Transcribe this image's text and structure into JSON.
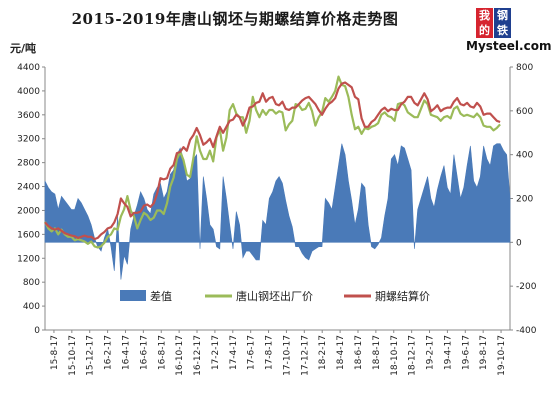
{
  "header": {
    "title": "2015-2019年唐山钢坯与期螺结算价格走势图",
    "unit": "元/吨"
  },
  "logo": {
    "char1": "我",
    "char2": "的",
    "char3": "钢",
    "char4": "铁",
    "text": "Mysteel.com"
  },
  "colors": {
    "diff": "#4a7ab8",
    "billet": "#9bbb59",
    "futures": "#c0504d",
    "axis": "#888888"
  },
  "chart_data": {
    "type": "line",
    "left_axis": {
      "min": 0,
      "max": 4400,
      "ticks": [
        0,
        400,
        800,
        1200,
        1600,
        2000,
        2400,
        2800,
        3200,
        3600,
        4000,
        4400
      ]
    },
    "right_axis": {
      "min": -400,
      "max": 800,
      "ticks": [
        -400,
        -200,
        0,
        200,
        400,
        600,
        800
      ]
    },
    "x_tick_labels": [
      "15-8-17",
      "15-10-17",
      "15-12-17",
      "16-2-17",
      "16-4-17",
      "16-6-17",
      "16-8-17",
      "16-10-17",
      "16-12-17",
      "17-2-17",
      "17-4-17",
      "17-6-17",
      "17-8-17",
      "17-10-17",
      "17-12-17",
      "18-2-17",
      "18-4-17",
      "18-6-17",
      "18-8-17",
      "18-10-17",
      "18-12-17",
      "19-2-17",
      "19-4-17",
      "19-6-17",
      "19-8-17",
      "19-10-17"
    ],
    "series": [
      {
        "name": "差值",
        "type": "area",
        "axis": "right",
        "values": [
          280,
          250,
          230,
          220,
          150,
          210,
          190,
          170,
          150,
          150,
          200,
          180,
          150,
          120,
          80,
          20,
          -20,
          -40,
          20,
          60,
          -20,
          -130,
          120,
          -170,
          -60,
          -100,
          60,
          120,
          170,
          230,
          200,
          150,
          130,
          220,
          250,
          270,
          200,
          230,
          310,
          330,
          400,
          430,
          380,
          280,
          290,
          380,
          400,
          -30,
          300,
          200,
          80,
          60,
          -20,
          -30,
          300,
          200,
          80,
          -30,
          140,
          80,
          -70,
          -40,
          -40,
          -60,
          -80,
          -80,
          100,
          80,
          200,
          230,
          280,
          300,
          270,
          190,
          120,
          70,
          -20,
          -20,
          -50,
          -70,
          -80,
          -40,
          -30,
          -20,
          -20,
          200,
          180,
          150,
          250,
          350,
          450,
          400,
          280,
          190,
          80,
          150,
          270,
          250,
          80,
          -20,
          -30,
          -10,
          20,
          120,
          200,
          380,
          400,
          350,
          440,
          430,
          380,
          330,
          -30,
          150,
          200,
          250,
          300,
          200,
          160,
          240,
          300,
          350,
          250,
          220,
          400,
          300,
          200,
          250,
          350,
          440,
          280,
          250,
          300,
          440,
          380,
          350,
          440,
          450,
          450,
          420,
          400,
          200
        ]
      },
      {
        "name": "唐山钢坯出厂价",
        "type": "line",
        "axis": "left",
        "values": [
          1810,
          1700,
          1650,
          1700,
          1600,
          1680,
          1600,
          1560,
          1560,
          1500,
          1520,
          1500,
          1480,
          1440,
          1480,
          1400,
          1380,
          1400,
          1460,
          1560,
          1600,
          1700,
          1680,
          1900,
          2020,
          2240,
          2000,
          1900,
          1700,
          1840,
          1960,
          1920,
          1840,
          1880,
          2000,
          2000,
          1940,
          2120,
          2400,
          2550,
          2860,
          2980,
          2840,
          2600,
          2560,
          2880,
          3240,
          3000,
          2860,
          2860,
          3000,
          2820,
          3220,
          3360,
          3000,
          3220,
          3680,
          3780,
          3620,
          3560,
          3560,
          3300,
          3500,
          3900,
          3680,
          3560,
          3680,
          3600,
          3680,
          3680,
          3620,
          3660,
          3640,
          3340,
          3440,
          3500,
          3780,
          3760,
          3680,
          3700,
          3800,
          3660,
          3420,
          3560,
          3640,
          3880,
          3820,
          3900,
          4000,
          4240,
          4100,
          4080,
          3900,
          3600,
          3360,
          3400,
          3280,
          3380,
          3360,
          3400,
          3420,
          3460,
          3600,
          3640,
          3580,
          3560,
          3500,
          3780,
          3800,
          3760,
          3640,
          3600,
          3560,
          3560,
          3700,
          3840,
          3780,
          3600,
          3580,
          3560,
          3500,
          3560,
          3580,
          3540,
          3700,
          3740,
          3620,
          3580,
          3600,
          3580,
          3560,
          3620,
          3560,
          3420,
          3400,
          3400,
          3340,
          3380,
          3440
        ]
      },
      {
        "name": "期螺结算价",
        "type": "line",
        "axis": "left",
        "values": [
          1800,
          1740,
          1700,
          1680,
          1700,
          1660,
          1620,
          1600,
          1580,
          1570,
          1540,
          1560,
          1580,
          1560,
          1560,
          1520,
          1540,
          1600,
          1640,
          1700,
          1720,
          1800,
          1940,
          2200,
          2120,
          2060,
          1900,
          1960,
          1960,
          1980,
          2080,
          2100,
          2060,
          2120,
          2280,
          2540,
          2520,
          2540,
          2700,
          2760,
          2960,
          2980,
          3060,
          3000,
          3180,
          3260,
          3380,
          3260,
          3100,
          3140,
          3200,
          3060,
          3240,
          3400,
          3300,
          3400,
          3500,
          3520,
          3600,
          3560,
          3420,
          3540,
          3720,
          3740,
          3800,
          3820,
          3960,
          3820,
          3880,
          3900,
          3780,
          3760,
          3820,
          3700,
          3680,
          3720,
          3720,
          3780,
          3840,
          3880,
          3900,
          3840,
          3780,
          3680,
          3600,
          3700,
          3780,
          3820,
          3880,
          4040,
          4120,
          4140,
          4100,
          4060,
          3900,
          3860,
          3540,
          3400,
          3400,
          3480,
          3520,
          3600,
          3680,
          3720,
          3660,
          3700,
          3680,
          3680,
          3780,
          3820,
          3900,
          3900,
          3800,
          3760,
          3860,
          3960,
          3860,
          3660,
          3700,
          3760,
          3660,
          3700,
          3720,
          3720,
          3820,
          3880,
          3780,
          3760,
          3800,
          3740,
          3720,
          3800,
          3740,
          3600,
          3620,
          3620,
          3560,
          3500,
          3480
        ]
      }
    ]
  },
  "legend": {
    "diff": "差值",
    "billet": "唐山钢坯出厂价",
    "futures": "期螺结算价"
  }
}
